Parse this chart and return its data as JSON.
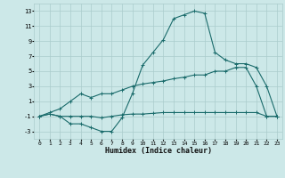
{
  "xlabel": "Humidex (Indice chaleur)",
  "xlim": [
    -0.5,
    23.5
  ],
  "ylim": [
    -4,
    14
  ],
  "xticks": [
    0,
    1,
    2,
    3,
    4,
    5,
    6,
    7,
    8,
    9,
    10,
    11,
    12,
    13,
    14,
    15,
    16,
    17,
    18,
    19,
    20,
    21,
    22,
    23
  ],
  "yticks": [
    -3,
    -1,
    1,
    3,
    5,
    7,
    9,
    11,
    13
  ],
  "background_color": "#cce8e8",
  "grid_color": "#aacccc",
  "line_color": "#1a6b6b",
  "line1_x": [
    0,
    1,
    2,
    3,
    4,
    5,
    6,
    7,
    8,
    9,
    10,
    11,
    12,
    13,
    14,
    15,
    16,
    17,
    18,
    19,
    20,
    21,
    22,
    23
  ],
  "line1_y": [
    -1,
    -0.7,
    -1,
    -2,
    -2,
    -2.5,
    -3,
    -3,
    -1.2,
    2,
    5.8,
    7.5,
    9.2,
    12,
    12.5,
    13,
    12.7,
    7.5,
    6.5,
    6,
    6,
    5.5,
    3,
    -1
  ],
  "line2_x": [
    0,
    1,
    2,
    3,
    4,
    5,
    6,
    7,
    8,
    9,
    10,
    11,
    12,
    13,
    14,
    15,
    16,
    17,
    18,
    19,
    20,
    21,
    22,
    23
  ],
  "line2_y": [
    -1,
    -0.5,
    0,
    1,
    2,
    1.5,
    2,
    2,
    2.5,
    3,
    3.3,
    3.5,
    3.7,
    4,
    4.2,
    4.5,
    4.5,
    5,
    5,
    5.5,
    5.5,
    3,
    -1,
    -1
  ],
  "line3_x": [
    0,
    1,
    2,
    3,
    4,
    5,
    6,
    7,
    8,
    9,
    10,
    11,
    12,
    13,
    14,
    15,
    16,
    17,
    18,
    19,
    20,
    21,
    22,
    23
  ],
  "line3_y": [
    -1,
    -0.7,
    -1,
    -1,
    -1,
    -1,
    -1.2,
    -1,
    -0.8,
    -0.7,
    -0.7,
    -0.6,
    -0.5,
    -0.5,
    -0.5,
    -0.5,
    -0.5,
    -0.5,
    -0.5,
    -0.5,
    -0.5,
    -0.5,
    -1,
    -1
  ]
}
